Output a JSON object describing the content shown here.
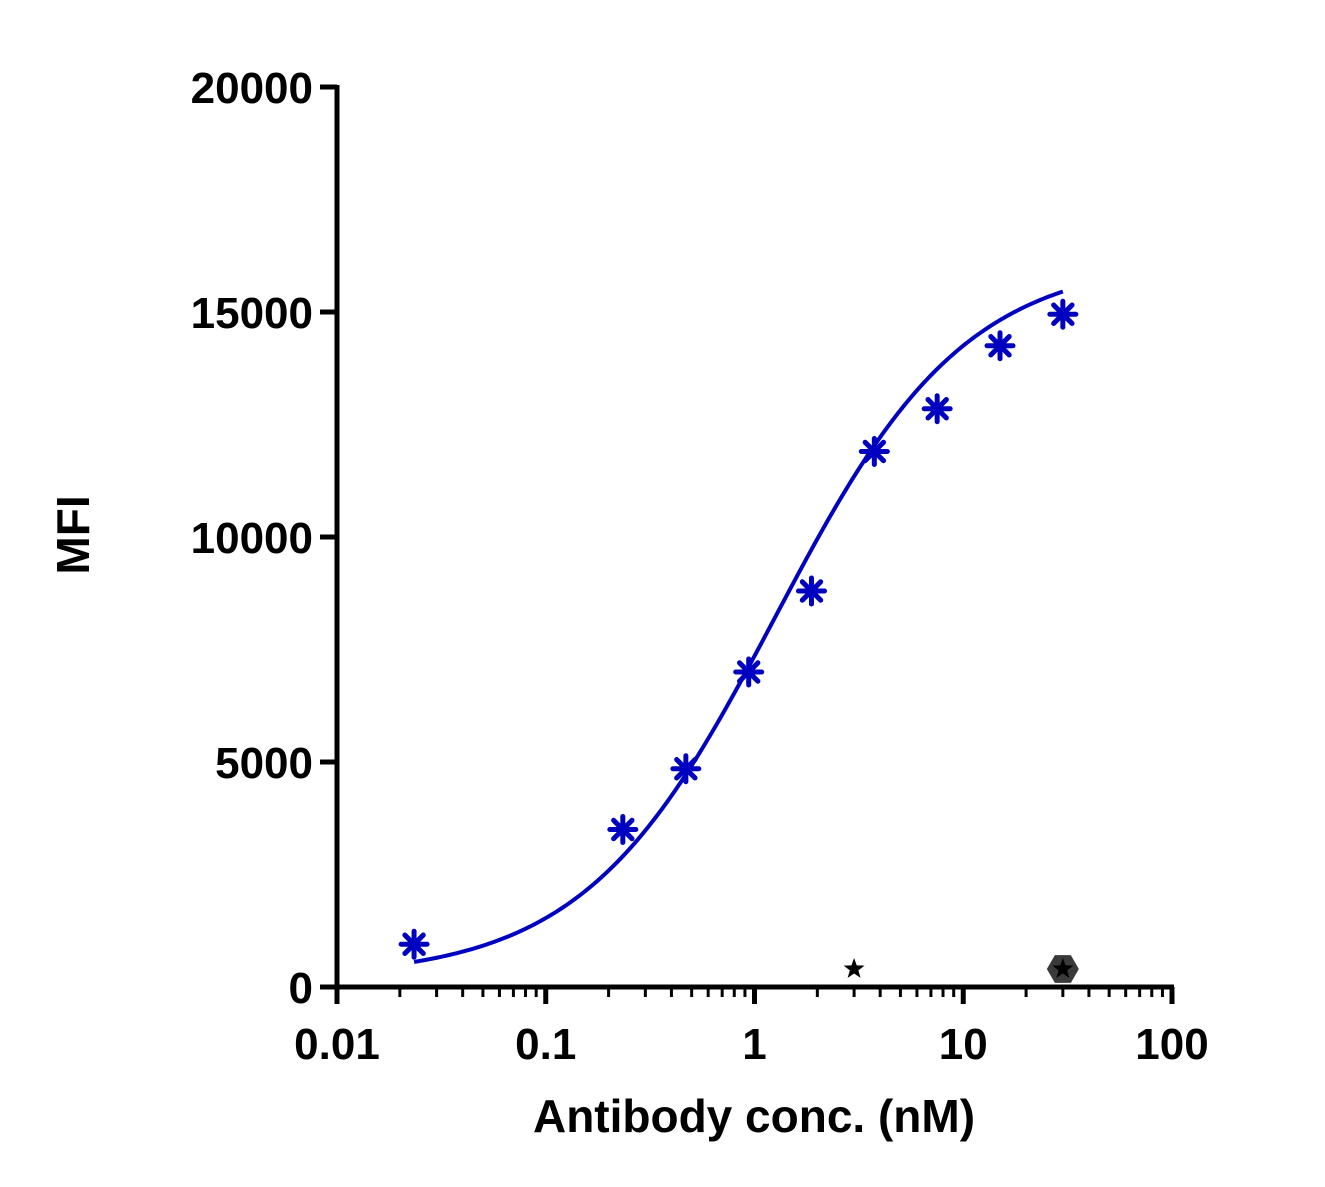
{
  "chart_data": {
    "type": "scatter",
    "title": "",
    "xlabel": "Antibody conc. (nM)",
    "ylabel": "MFI",
    "x_scale": "log",
    "xlim": [
      0.01,
      100
    ],
    "ylim": [
      0,
      20000
    ],
    "x_ticks": [
      "0.01",
      "0.1",
      "1",
      "10",
      "100"
    ],
    "y_ticks": [
      "0",
      "5000",
      "10000",
      "15000",
      "20000"
    ],
    "grid": false,
    "legend": "none",
    "series": [
      {
        "marker": "asterisk",
        "color": "#0000c0",
        "fit_curve": true,
        "x": [
          0.0234,
          0.234,
          0.469,
          0.938,
          1.875,
          3.75,
          7.5,
          15,
          30
        ],
        "y": [
          950,
          3500,
          4850,
          7000,
          8800,
          11900,
          12850,
          14250,
          14950
        ]
      },
      {
        "marker": "star",
        "color": "#000000",
        "x": [
          3
        ],
        "y": [
          400
        ]
      },
      {
        "marker": "hexagon-star",
        "color": "#222222",
        "x": [
          30
        ],
        "y": [
          400
        ]
      }
    ]
  }
}
